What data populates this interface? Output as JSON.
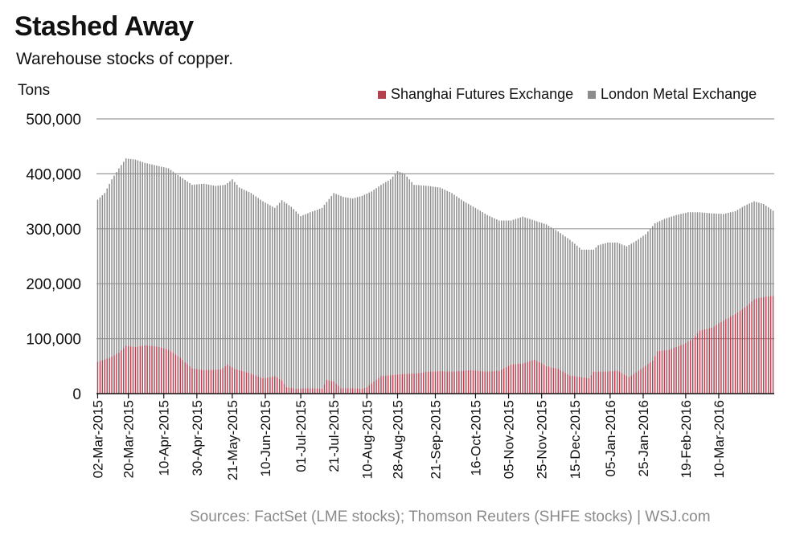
{
  "header": {
    "title": "Stashed Away",
    "subtitle": "Warehouse stocks of copper."
  },
  "footer": {
    "source": "Sources: FactSet (LME stocks); Thomson Reuters (SHFE stocks)   | WSJ.com"
  },
  "colors": {
    "shfe": "#b5404f",
    "shfe_light": "#e3a3ad",
    "lme": "#8c8c8c",
    "lme_light": "#cfcfcf",
    "grid": "#999999"
  },
  "chart_data": {
    "type": "bar",
    "stacked": true,
    "title": "Stashed Away",
    "subtitle": "Warehouse stocks of copper.",
    "ylabel": "Tons",
    "ylim": [
      0,
      500000
    ],
    "yticks": [
      0,
      100000,
      200000,
      300000,
      400000,
      500000
    ],
    "ytick_labels": [
      "0",
      "100,000",
      "200,000",
      "300,000",
      "400,000",
      "500,000"
    ],
    "grid": true,
    "legend_position": "top-right",
    "x_tick_labels": [
      "02-Mar-2015",
      "20-Mar-2015",
      "10-Apr-2015",
      "30-Apr-2015",
      "21-May-2015",
      "10-Jun-2015",
      "01-Jul-2015",
      "21-Jul-2015",
      "10-Aug-2015",
      "28-Aug-2015",
      "21-Sep-2015",
      "16-Oct-2015",
      "05-Nov-2015",
      "25-Nov-2015",
      "15-Dec-2015",
      "05-Jan-2016",
      "25-Jan-2016",
      "19-Feb-2016",
      "10-Mar-2016"
    ],
    "x_tick_positions": [
      0,
      13,
      28,
      42,
      57,
      71,
      86,
      100,
      114,
      127,
      143,
      160,
      174,
      188,
      202,
      217,
      231,
      249,
      263
    ],
    "series": [
      {
        "name": "Shanghai Futures Exchange",
        "color": "#b5404f",
        "keyframes": [
          [
            0,
            58000
          ],
          [
            5,
            65000
          ],
          [
            9,
            75000
          ],
          [
            12,
            87000
          ],
          [
            16,
            85000
          ],
          [
            20,
            88000
          ],
          [
            25,
            86000
          ],
          [
            30,
            80000
          ],
          [
            35,
            65000
          ],
          [
            40,
            46000
          ],
          [
            45,
            43000
          ],
          [
            52,
            44000
          ],
          [
            55,
            53000
          ],
          [
            58,
            45000
          ],
          [
            64,
            38000
          ],
          [
            70,
            28000
          ],
          [
            73,
            30000
          ],
          [
            75,
            32000
          ],
          [
            78,
            24000
          ],
          [
            80,
            12000
          ],
          [
            84,
            9000
          ],
          [
            90,
            10000
          ],
          [
            95,
            9000
          ],
          [
            97,
            25000
          ],
          [
            100,
            22000
          ],
          [
            103,
            10000
          ],
          [
            108,
            10000
          ],
          [
            112,
            9000
          ],
          [
            114,
            12000
          ],
          [
            120,
            32000
          ],
          [
            125,
            34000
          ],
          [
            130,
            36000
          ],
          [
            135,
            37000
          ],
          [
            140,
            40000
          ],
          [
            145,
            41000
          ],
          [
            150,
            40000
          ],
          [
            158,
            43000
          ],
          [
            165,
            40000
          ],
          [
            170,
            42000
          ],
          [
            175,
            53000
          ],
          [
            180,
            55000
          ],
          [
            185,
            62000
          ],
          [
            190,
            50000
          ],
          [
            195,
            45000
          ],
          [
            200,
            33000
          ],
          [
            205,
            30000
          ],
          [
            208,
            28000
          ],
          [
            210,
            40000
          ],
          [
            215,
            40000
          ],
          [
            220,
            42000
          ],
          [
            225,
            30000
          ],
          [
            230,
            45000
          ],
          [
            235,
            60000
          ],
          [
            237,
            77000
          ],
          [
            242,
            80000
          ],
          [
            248,
            90000
          ],
          [
            252,
            100000
          ],
          [
            255,
            115000
          ],
          [
            260,
            120000
          ],
          [
            265,
            133000
          ],
          [
            270,
            145000
          ],
          [
            275,
            160000
          ],
          [
            278,
            172000
          ],
          [
            282,
            176000
          ],
          [
            286,
            178000
          ]
        ]
      },
      {
        "name": "London Metal Exchange",
        "color": "#8c8c8c",
        "total_keyframes": [
          [
            0,
            353000
          ],
          [
            3,
            365000
          ],
          [
            6,
            390000
          ],
          [
            9,
            410000
          ],
          [
            12,
            428000
          ],
          [
            16,
            426000
          ],
          [
            20,
            420000
          ],
          [
            25,
            415000
          ],
          [
            30,
            410000
          ],
          [
            35,
            395000
          ],
          [
            40,
            380000
          ],
          [
            45,
            382000
          ],
          [
            50,
            378000
          ],
          [
            54,
            380000
          ],
          [
            57,
            390000
          ],
          [
            60,
            375000
          ],
          [
            65,
            365000
          ],
          [
            70,
            350000
          ],
          [
            75,
            338000
          ],
          [
            78,
            352000
          ],
          [
            82,
            340000
          ],
          [
            86,
            323000
          ],
          [
            90,
            330000
          ],
          [
            95,
            338000
          ],
          [
            100,
            365000
          ],
          [
            104,
            358000
          ],
          [
            108,
            355000
          ],
          [
            112,
            360000
          ],
          [
            116,
            368000
          ],
          [
            120,
            380000
          ],
          [
            124,
            390000
          ],
          [
            127,
            405000
          ],
          [
            130,
            400000
          ],
          [
            134,
            380000
          ],
          [
            140,
            378000
          ],
          [
            145,
            375000
          ],
          [
            150,
            365000
          ],
          [
            155,
            350000
          ],
          [
            160,
            338000
          ],
          [
            165,
            325000
          ],
          [
            170,
            315000
          ],
          [
            175,
            315000
          ],
          [
            180,
            322000
          ],
          [
            185,
            315000
          ],
          [
            190,
            308000
          ],
          [
            195,
            295000
          ],
          [
            200,
            280000
          ],
          [
            205,
            262000
          ],
          [
            210,
            262000
          ],
          [
            212,
            270000
          ],
          [
            216,
            275000
          ],
          [
            220,
            275000
          ],
          [
            224,
            268000
          ],
          [
            228,
            278000
          ],
          [
            232,
            290000
          ],
          [
            236,
            310000
          ],
          [
            240,
            318000
          ],
          [
            245,
            325000
          ],
          [
            250,
            330000
          ],
          [
            255,
            330000
          ],
          [
            260,
            328000
          ],
          [
            265,
            327000
          ],
          [
            270,
            332000
          ],
          [
            274,
            342000
          ],
          [
            278,
            350000
          ],
          [
            282,
            345000
          ],
          [
            286,
            333000
          ]
        ]
      }
    ]
  }
}
